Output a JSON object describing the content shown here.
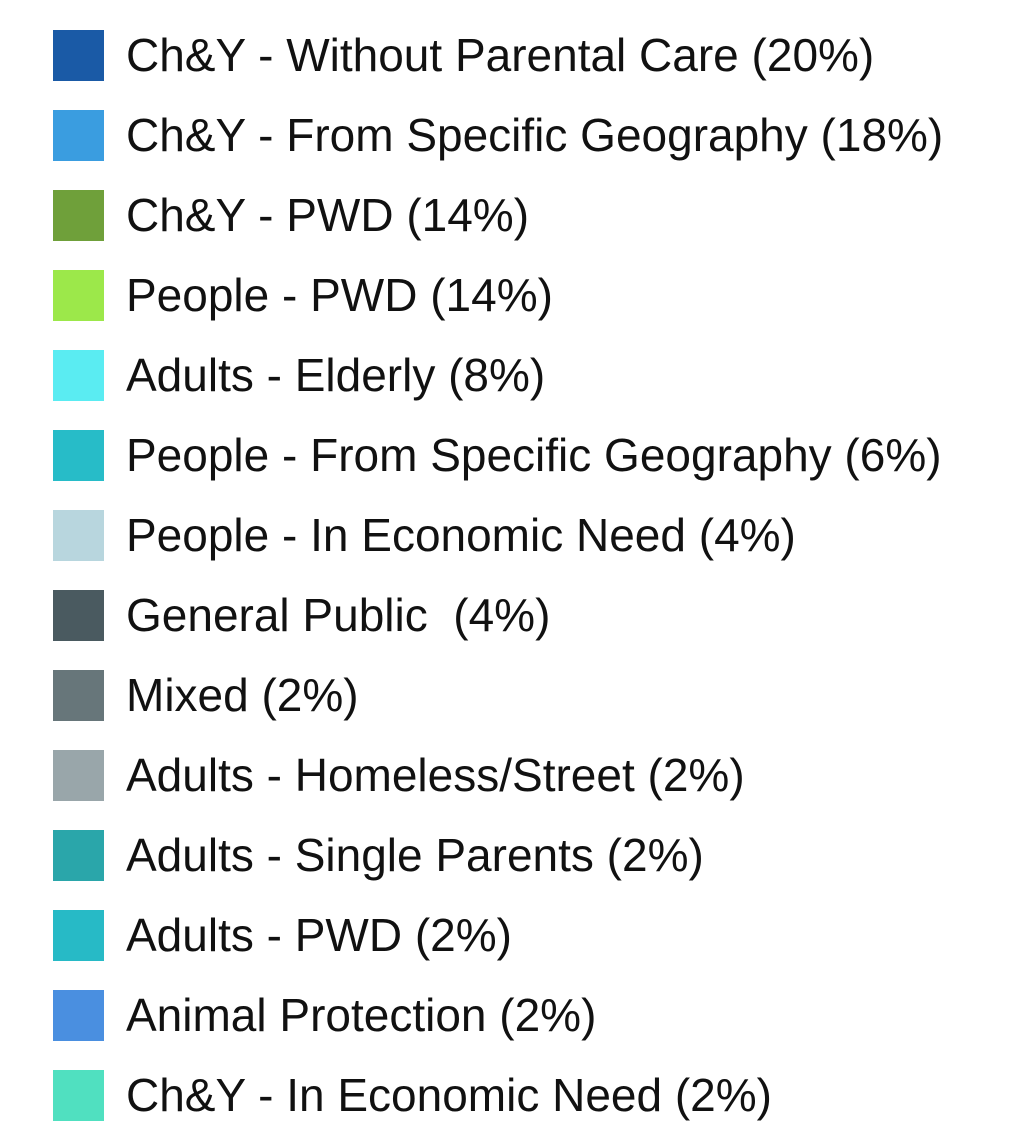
{
  "legend": {
    "items": [
      {
        "label": "Ch&Y - Without Parental Care (20%)",
        "color": "#1a5aa6"
      },
      {
        "label": "Ch&Y - From Specific Geography (18%)",
        "color": "#3a9de0"
      },
      {
        "label": "Ch&Y - PWD (14%)",
        "color": "#6fa03a"
      },
      {
        "label": "People - PWD (14%)",
        "color": "#9ce84a"
      },
      {
        "label": "Adults - Elderly (8%)",
        "color": "#5aecf2"
      },
      {
        "label": "People - From Specific Geography (6%)",
        "color": "#27bcc8"
      },
      {
        "label": "People - In Economic Need (4%)",
        "color": "#b8d6de"
      },
      {
        "label": "General Public  (4%)",
        "color": "#4a5a60"
      },
      {
        "label": "Mixed (2%)",
        "color": "#67767a"
      },
      {
        "label": "Adults - Homeless/Street (2%)",
        "color": "#99a6aa"
      },
      {
        "label": "Adults - Single Parents (2%)",
        "color": "#2aa6aa"
      },
      {
        "label": "Adults - PWD (2%)",
        "color": "#27bac6"
      },
      {
        "label": "Animal Protection (2%)",
        "color": "#4a8fe0"
      },
      {
        "label": "Ch&Y - In Economic Need (2%)",
        "color": "#50e0c0"
      }
    ]
  }
}
